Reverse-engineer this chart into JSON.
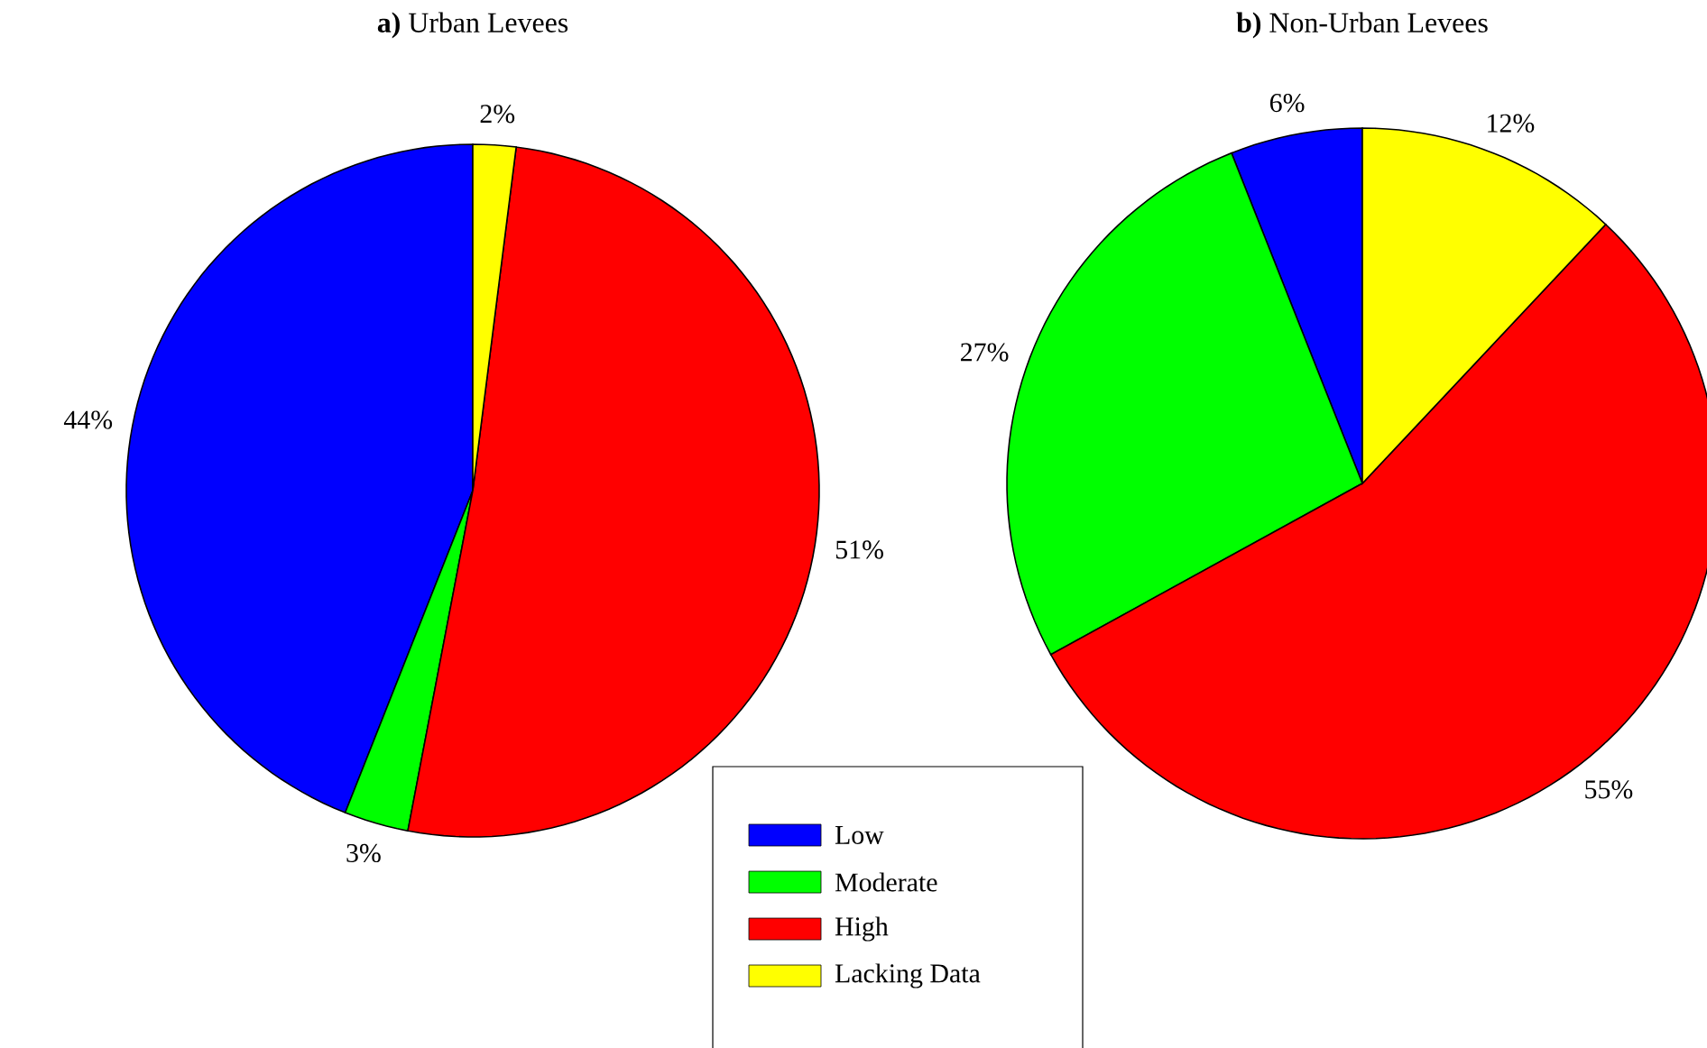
{
  "chart_data": [
    {
      "type": "pie",
      "title": "**a)** Urban Levees",
      "categories": [
        "Low",
        "Moderate",
        "High",
        "Lacking Data"
      ],
      "values": [
        44,
        3,
        51,
        2
      ],
      "value_labels": [
        "44%",
        "3%",
        "51%",
        "2%"
      ],
      "colors": [
        "#0000ff",
        "#00ff00",
        "#ff0000",
        "#ffff00"
      ],
      "legend": "bottom"
    },
    {
      "type": "pie",
      "title": "**b)** Non-Urban Levees",
      "categories": [
        null,
        null,
        null,
        null
      ],
      "values": [
        6,
        27,
        55,
        12
      ],
      "value_labels": [
        "6%",
        "27%",
        "55%",
        "12%"
      ],
      "colors": [
        "#0000ff",
        "#00ff00",
        "#ff0000",
        "#ffff00"
      ]
    }
  ]
}
